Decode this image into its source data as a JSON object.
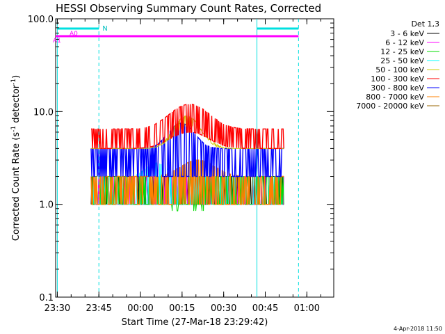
{
  "chart_data": {
    "type": "line",
    "title": "HESSI Observing Summary Count Rates, Corrected",
    "xlabel": "Start Time (27-Mar-18 23:29:42)",
    "ylabel_main": "Corrected Count Rate (s",
    "ylabel_sup": "-1",
    "ylabel_mid": " detector",
    "ylabel_sup2": "-1",
    "ylabel_end": ")",
    "timestamp": "4-Apr-2018 11:50",
    "legend_title": "Det 1,3",
    "y_scale": "log",
    "ylim": [
      0.1,
      100
    ],
    "x_range_minutes": [
      -0.3,
      100
    ],
    "x_ticks": [
      {
        "m": 0.3,
        "label": "23:30"
      },
      {
        "m": 15.3,
        "label": "23:45"
      },
      {
        "m": 30.3,
        "label": "00:00"
      },
      {
        "m": 45.3,
        "label": "00:15"
      },
      {
        "m": 60.3,
        "label": "00:30"
      },
      {
        "m": 75.3,
        "label": "00:45"
      },
      {
        "m": 90.3,
        "label": "01:00"
      }
    ],
    "y_ticks": [
      {
        "v": 0.1,
        "label": "0.1"
      },
      {
        "v": 1,
        "label": "1.0"
      },
      {
        "v": 10,
        "label": "10.0"
      },
      {
        "v": 100,
        "label": "100.0"
      }
    ],
    "series": [
      {
        "name": "3 - 6 keV",
        "color": "#000000"
      },
      {
        "name": "6 - 12 keV",
        "color": "#ff00ff"
      },
      {
        "name": "12 - 25 keV",
        "color": "#00dd00"
      },
      {
        "name": "25 - 50 keV",
        "color": "#00ffff"
      },
      {
        "name": "50 - 100 keV",
        "color": "#cccc00"
      },
      {
        "name": "100 - 300 keV",
        "color": "#ff0000"
      },
      {
        "name": "300 - 800 keV",
        "color": "#0000ff"
      },
      {
        "name": "800 - 7000 keV",
        "color": "#ff8000"
      },
      {
        "name": "7000 - 20000 keV",
        "color": "#996600"
      }
    ],
    "data_window_minutes": [
      12.5,
      82.0
    ],
    "band_levels": [
      {
        "series": "800 - 7000 keV",
        "low": 1.0,
        "high": 2.0
      },
      {
        "series": "300 - 800 keV",
        "low": 2.0,
        "high": 4.0
      },
      {
        "series": "100 - 300 keV",
        "low": 4.0,
        "high": 6.5
      },
      {
        "series": "100 - 300 keV",
        "peak_value": 12,
        "peak_minute": 48
      }
    ],
    "annotations": {
      "night_label": "N",
      "attenuator_label_1": "A1",
      "attenuator_label_2": "A0",
      "vertical_lines_minutes": [
        0.3,
        15.3,
        72.3,
        87.3
      ],
      "n_bar_1": [
        0.3,
        15.3
      ],
      "n_bar_2": [
        72.3,
        87.3
      ],
      "attenuator_level": 65
    }
  }
}
